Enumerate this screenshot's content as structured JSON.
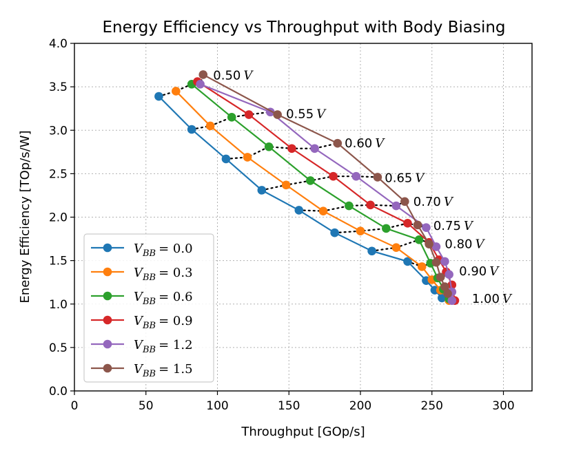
{
  "chart_data": {
    "type": "line",
    "title": "Energy Efficiency vs Throughput with Body Biasing",
    "xlabel": "Throughput [GOp/s]",
    "ylabel": "Energy Efficiency [TOp/s/W]",
    "xlim": [
      0,
      320
    ],
    "ylim": [
      0,
      4.0
    ],
    "xticks": [
      0,
      50,
      100,
      150,
      200,
      250,
      300
    ],
    "yticks": [
      0.0,
      0.5,
      1.0,
      1.5,
      2.0,
      2.5,
      3.0,
      3.5,
      4.0
    ],
    "xtick_labels": [
      "0",
      "50",
      "100",
      "150",
      "200",
      "250",
      "300"
    ],
    "ytick_labels": [
      "0.0",
      "0.5",
      "1.0",
      "1.5",
      "2.0",
      "2.5",
      "3.0",
      "3.5",
      "4.0"
    ],
    "grid": true,
    "legend_position": "lower-left",
    "voltages": [
      "0.50",
      "0.55",
      "0.60",
      "0.65",
      "0.70",
      "0.75",
      "0.80",
      "0.90",
      "1.00"
    ],
    "voltage_labels": [
      {
        "text": "0.50",
        "unit": "V",
        "x": 97,
        "y": 3.63
      },
      {
        "text": "0.55",
        "unit": "V",
        "x": 148,
        "y": 3.19
      },
      {
        "text": "0.60",
        "unit": "V",
        "x": 189,
        "y": 2.85
      },
      {
        "text": "0.65",
        "unit": "V",
        "x": 217,
        "y": 2.45
      },
      {
        "text": "0.70",
        "unit": "V",
        "x": 237,
        "y": 2.18
      },
      {
        "text": "0.75",
        "unit": "V",
        "x": 251,
        "y": 1.9
      },
      {
        "text": "0.80",
        "unit": "V",
        "x": 259,
        "y": 1.69
      },
      {
        "text": "0.90",
        "unit": "V",
        "x": 269,
        "y": 1.38
      },
      {
        "text": "1.00",
        "unit": "V",
        "x": 278,
        "y": 1.06
      }
    ],
    "series": [
      {
        "name": "V_BB = 0.0",
        "legend_sub": "BB",
        "legend_value": "0.0",
        "color": "#1f77b4",
        "x": [
          59,
          82,
          106,
          131,
          157,
          182,
          208,
          233,
          246,
          252,
          257
        ],
        "y": [
          3.39,
          3.01,
          2.67,
          2.31,
          2.08,
          1.82,
          1.61,
          1.49,
          1.27,
          1.16,
          1.07
        ]
      },
      {
        "name": "V_BB = 0.3",
        "legend_sub": "BB",
        "legend_value": "0.3",
        "color": "#ff7f0e",
        "x": [
          71,
          95,
          121,
          148,
          174,
          200,
          225,
          243,
          250,
          256,
          262
        ],
        "y": [
          3.45,
          3.05,
          2.69,
          2.37,
          2.07,
          1.84,
          1.65,
          1.43,
          1.28,
          1.16,
          1.04
        ]
      },
      {
        "name": "V_BB = 0.6",
        "legend_sub": "BB",
        "legend_value": "0.6",
        "color": "#2ca02c",
        "x": [
          82,
          110,
          136,
          165,
          192,
          218,
          241,
          249,
          254,
          258,
          262
        ],
        "y": [
          3.53,
          3.15,
          2.81,
          2.42,
          2.13,
          1.87,
          1.74,
          1.47,
          1.3,
          1.17,
          1.06
        ]
      },
      {
        "name": "V_BB = 0.9",
        "legend_sub": "BB",
        "legend_value": "0.9",
        "color": "#d62728",
        "x": [
          86,
          122,
          152,
          181,
          207,
          233,
          248,
          255,
          260,
          264,
          266
        ],
        "y": [
          3.56,
          3.18,
          2.79,
          2.47,
          2.14,
          1.93,
          1.71,
          1.51,
          1.37,
          1.22,
          1.04
        ]
      },
      {
        "name": "V_BB = 1.2",
        "legend_sub": "BB",
        "legend_value": "1.2",
        "color": "#9467bd",
        "x": [
          88,
          137,
          168,
          197,
          225,
          246,
          253,
          259,
          262,
          264,
          264
        ],
        "y": [
          3.53,
          3.21,
          2.79,
          2.47,
          2.13,
          1.88,
          1.66,
          1.49,
          1.34,
          1.14,
          1.04
        ]
      },
      {
        "name": "V_BB = 1.5",
        "legend_sub": "BB",
        "legend_value": "1.5",
        "color": "#8c564b",
        "x": [
          90,
          142,
          184,
          212,
          231,
          240,
          248,
          253,
          256,
          259,
          261
        ],
        "y": [
          3.64,
          3.18,
          2.85,
          2.46,
          2.18,
          1.91,
          1.69,
          1.48,
          1.31,
          1.2,
          1.12
        ]
      }
    ]
  }
}
